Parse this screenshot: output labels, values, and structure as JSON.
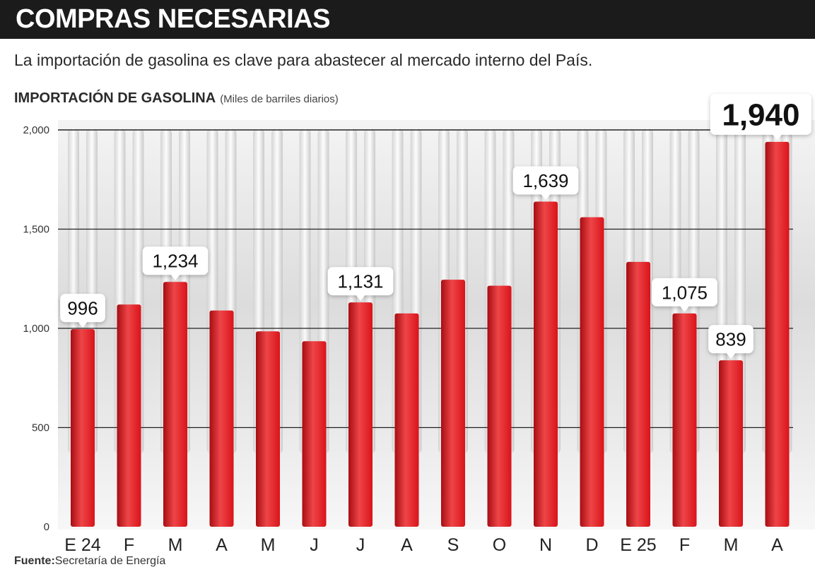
{
  "header": {
    "title": "COMPRAS NECESARIAS",
    "subtitle": "La importación de gasolina es clave para abastecer al mercado interno del País."
  },
  "chart_heading": {
    "title": "IMPORTACIÓN DE GASOLINA",
    "unit": "(Miles de barriles diarios)"
  },
  "source": {
    "label": "Fuente:",
    "text": "Secretaría de Energía"
  },
  "colors": {
    "bar": "#d9141a",
    "bar_light": "#ee4548",
    "bar_dark": "#a70d12",
    "title_bar": "#1b1b1b"
  },
  "chart_data": {
    "type": "bar",
    "title": "IMPORTACIÓN DE GASOLINA",
    "ylabel": "(Miles de barriles diarios)",
    "categories": [
      "E 24",
      "F",
      "M",
      "A",
      "M",
      "J",
      "J",
      "A",
      "S",
      "O",
      "N",
      "D",
      "E 25",
      "F",
      "M",
      "A"
    ],
    "values": [
      996,
      1120,
      1234,
      1090,
      985,
      935,
      1131,
      1075,
      1245,
      1215,
      1639,
      1560,
      1335,
      1075,
      839,
      1940
    ],
    "labeled_values": [
      {
        "index": 0,
        "text": "996"
      },
      {
        "index": 2,
        "text": "1,234"
      },
      {
        "index": 6,
        "text": "1,131"
      },
      {
        "index": 10,
        "text": "1,639"
      },
      {
        "index": 13,
        "text": "1,075"
      },
      {
        "index": 14,
        "text": "839"
      },
      {
        "index": 15,
        "text": "1,940",
        "emphasis": true
      }
    ],
    "yticks": [
      {
        "value": 0,
        "label": "0"
      },
      {
        "value": 500,
        "label": "500"
      },
      {
        "value": 1000,
        "label": "1,000"
      },
      {
        "value": 1500,
        "label": "1,500"
      },
      {
        "value": 2000,
        "label": "2,000"
      }
    ],
    "ylim": [
      0,
      2000
    ],
    "grid": true,
    "legend": "none"
  }
}
